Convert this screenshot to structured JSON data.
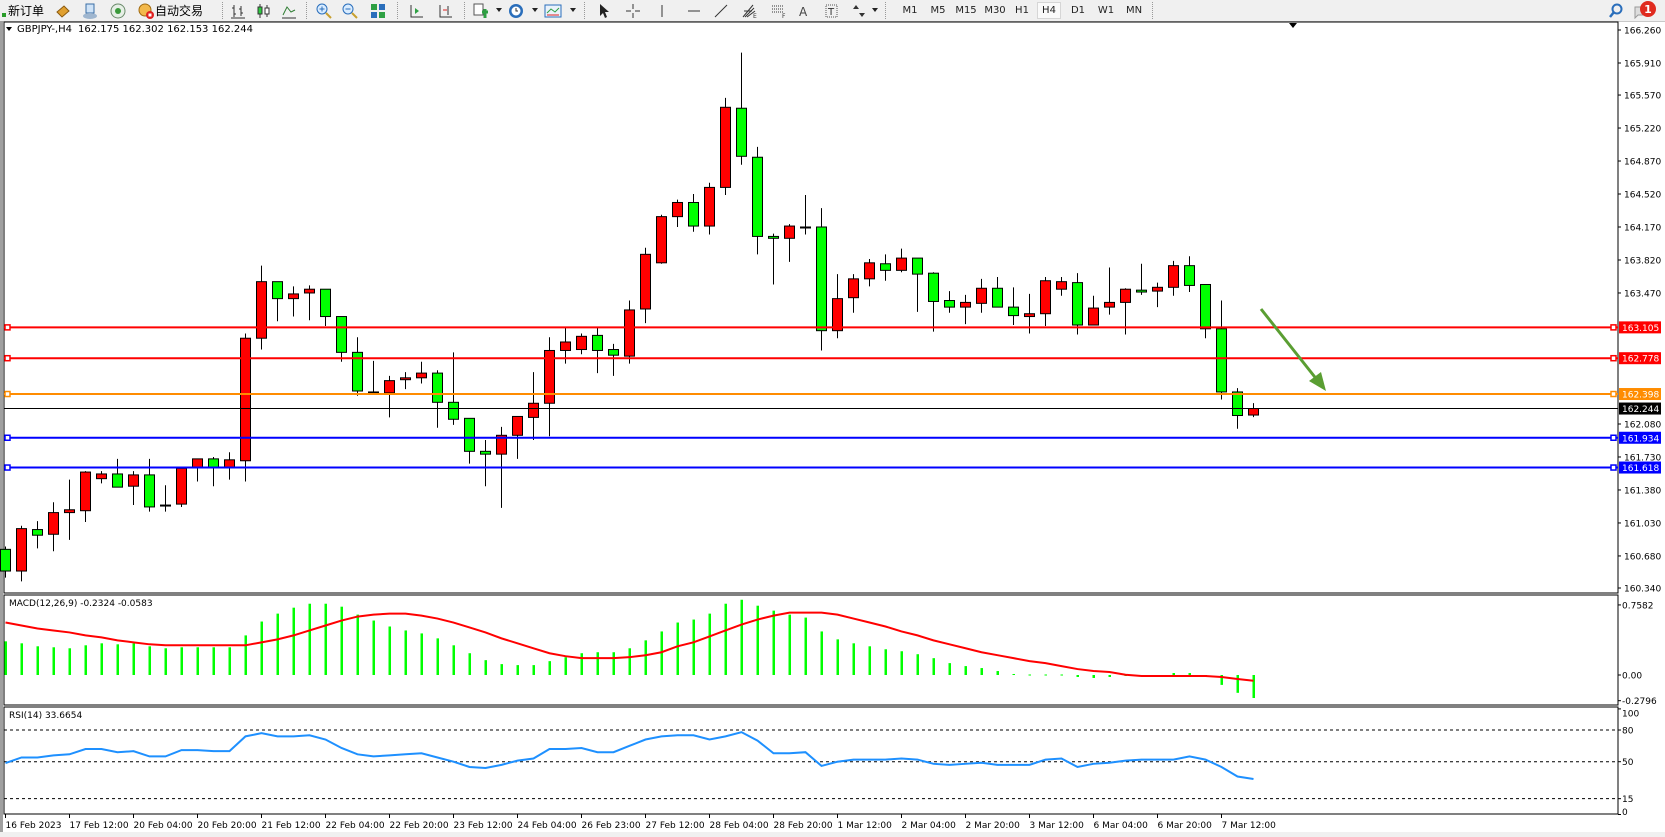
{
  "toolbar": {
    "new_order_label": "新订单",
    "auto_trading_label": "自动交易",
    "icons": [
      "new-order-icon",
      "market-watch-icon",
      "navigator-icon",
      "signals-icon",
      "auto-trading-icon",
      "bar-chart-icon",
      "candlestick-icon",
      "line-chart-icon",
      "zoom-in-icon",
      "zoom-out-icon",
      "tile-windows-icon",
      "chart-shift-icon",
      "autoscroll-icon",
      "indicators-icon",
      "periods-icon",
      "templates-icon",
      "cursor-icon",
      "crosshair-icon",
      "vertical-line-icon",
      "horizontal-line-icon",
      "trendline-icon",
      "fibonacci-fan-icon",
      "fibonacci-retracement-icon",
      "text-icon",
      "text-label-icon",
      "arrows-icon",
      "search-icon",
      "notifications-icon"
    ],
    "timeframes": [
      "M1",
      "M5",
      "M15",
      "M30",
      "H1",
      "H4",
      "D1",
      "W1",
      "MN"
    ],
    "active_timeframe": "H4",
    "notification_count": "1"
  },
  "chart_header": {
    "symbol": "GBPJPY-,H4",
    "ohlc": "162.175 162.302 162.153 162.244"
  },
  "chart_data": {
    "type": "candlestick",
    "symbol": "GBPJPY-",
    "timeframe": "H4",
    "colors": {
      "bull": "#ff0000",
      "bear": "#00ff00",
      "outline": "#000000"
    },
    "ylim": [
      160.34,
      166.26
    ],
    "price_ticks": [
      "166.260",
      "165.910",
      "165.570",
      "165.220",
      "164.870",
      "164.520",
      "164.170",
      "163.820",
      "163.470",
      "163.105",
      "162.778",
      "162.398",
      "162.244",
      "162.080",
      "161.934",
      "161.730",
      "161.618",
      "161.380",
      "161.030",
      "160.680",
      "160.340"
    ],
    "grid_tick_values": [
      166.26,
      165.91,
      165.57,
      165.22,
      164.87,
      164.52,
      164.17,
      163.82,
      163.47,
      162.08,
      161.73,
      161.38,
      161.03,
      160.68,
      160.34
    ],
    "levels": [
      {
        "price": 163.105,
        "label": "163.105",
        "color": "#ff0000"
      },
      {
        "price": 162.778,
        "label": "162.778",
        "color": "#ff0000"
      },
      {
        "price": 162.398,
        "label": "162.398",
        "color": "#ff8c00"
      },
      {
        "price": 161.934,
        "label": "161.934",
        "color": "#0000ff"
      },
      {
        "price": 161.618,
        "label": "161.618",
        "color": "#0000ff"
      }
    ],
    "bid": {
      "price": 162.244,
      "label": "162.244"
    },
    "time_labels": [
      "16 Feb 2023",
      "17 Feb 12:00",
      "20 Feb 04:00",
      "20 Feb 20:00",
      "21 Feb 12:00",
      "22 Feb 04:00",
      "22 Feb 20:00",
      "23 Feb 12:00",
      "24 Feb 04:00",
      "26 Feb 23:00",
      "27 Feb 12:00",
      "28 Feb 04:00",
      "28 Feb 20:00",
      "1 Mar 12:00",
      "2 Mar 04:00",
      "2 Mar 20:00",
      "3 Mar 12:00",
      "6 Mar 04:00",
      "6 Mar 20:00",
      "7 Mar 12:00"
    ],
    "time_label_every": 4,
    "ohlc": [
      [
        160.75,
        160.78,
        160.45,
        160.52
      ],
      [
        160.52,
        161.0,
        160.41,
        160.97
      ],
      [
        160.96,
        161.05,
        160.76,
        160.9
      ],
      [
        160.91,
        161.25,
        160.73,
        161.14
      ],
      [
        161.14,
        161.49,
        160.85,
        161.17
      ],
      [
        161.16,
        161.58,
        161.04,
        161.57
      ],
      [
        161.5,
        161.58,
        161.45,
        161.55
      ],
      [
        161.55,
        161.71,
        161.41,
        161.41
      ],
      [
        161.42,
        161.58,
        161.22,
        161.54
      ],
      [
        161.54,
        161.71,
        161.15,
        161.2
      ],
      [
        161.22,
        161.43,
        161.15,
        161.22
      ],
      [
        161.23,
        161.62,
        161.2,
        161.61
      ],
      [
        161.62,
        161.71,
        161.47,
        161.71
      ],
      [
        161.71,
        161.73,
        161.42,
        161.62
      ],
      [
        161.62,
        161.78,
        161.49,
        161.7
      ],
      [
        161.69,
        163.04,
        161.47,
        162.99
      ],
      [
        162.99,
        163.76,
        162.87,
        163.59
      ],
      [
        163.59,
        163.59,
        163.17,
        163.41
      ],
      [
        163.41,
        163.54,
        163.22,
        163.46
      ],
      [
        163.47,
        163.55,
        163.18,
        163.51
      ],
      [
        163.51,
        163.51,
        163.12,
        163.22
      ],
      [
        163.22,
        163.22,
        162.74,
        162.84
      ],
      [
        162.84,
        163.0,
        162.38,
        162.43
      ],
      [
        162.42,
        162.75,
        162.41,
        162.42
      ],
      [
        162.41,
        162.59,
        162.15,
        162.54
      ],
      [
        162.55,
        162.63,
        162.45,
        162.57
      ],
      [
        162.57,
        162.74,
        162.51,
        162.62
      ],
      [
        162.62,
        162.65,
        162.04,
        162.31
      ],
      [
        162.31,
        162.84,
        162.07,
        162.13
      ],
      [
        162.14,
        162.14,
        161.66,
        161.79
      ],
      [
        161.79,
        161.91,
        161.42,
        161.76
      ],
      [
        161.76,
        162.05,
        161.19,
        161.96
      ],
      [
        161.96,
        162.16,
        161.71,
        162.16
      ],
      [
        162.15,
        162.63,
        161.91,
        162.3
      ],
      [
        162.3,
        163.0,
        161.95,
        162.86
      ],
      [
        162.86,
        163.1,
        162.72,
        162.95
      ],
      [
        162.87,
        163.04,
        162.82,
        163.01
      ],
      [
        163.02,
        163.1,
        162.62,
        162.86
      ],
      [
        162.87,
        162.93,
        162.59,
        162.81
      ],
      [
        162.8,
        163.39,
        162.72,
        163.29
      ],
      [
        163.3,
        163.95,
        163.15,
        163.88
      ],
      [
        163.79,
        164.3,
        163.78,
        164.28
      ],
      [
        164.28,
        164.46,
        164.17,
        164.43
      ],
      [
        164.43,
        164.52,
        164.12,
        164.18
      ],
      [
        164.18,
        164.64,
        164.09,
        164.59
      ],
      [
        164.59,
        165.54,
        164.51,
        165.44
      ],
      [
        165.43,
        166.02,
        164.83,
        164.92
      ],
      [
        164.91,
        165.02,
        163.88,
        164.07
      ],
      [
        164.07,
        164.1,
        163.56,
        164.05
      ],
      [
        164.05,
        164.2,
        163.8,
        164.18
      ],
      [
        164.17,
        164.51,
        164.09,
        164.17
      ],
      [
        164.17,
        164.37,
        162.86,
        163.07
      ],
      [
        163.07,
        163.67,
        162.99,
        163.41
      ],
      [
        163.42,
        163.67,
        163.26,
        163.62
      ],
      [
        163.62,
        163.83,
        163.54,
        163.79
      ],
      [
        163.78,
        163.88,
        163.6,
        163.71
      ],
      [
        163.71,
        163.94,
        163.69,
        163.84
      ],
      [
        163.84,
        163.84,
        163.27,
        163.67
      ],
      [
        163.68,
        163.69,
        163.06,
        163.38
      ],
      [
        163.39,
        163.49,
        163.26,
        163.32
      ],
      [
        163.32,
        163.45,
        163.14,
        163.37
      ],
      [
        163.36,
        163.62,
        163.26,
        163.52
      ],
      [
        163.52,
        163.64,
        163.32,
        163.32
      ],
      [
        163.32,
        163.53,
        163.13,
        163.23
      ],
      [
        163.22,
        163.46,
        163.04,
        163.25
      ],
      [
        163.25,
        163.64,
        163.12,
        163.6
      ],
      [
        163.51,
        163.64,
        163.44,
        163.59
      ],
      [
        163.58,
        163.68,
        163.03,
        163.13
      ],
      [
        163.13,
        163.44,
        163.13,
        163.31
      ],
      [
        163.32,
        163.74,
        163.24,
        163.37
      ],
      [
        163.37,
        163.52,
        163.03,
        163.51
      ],
      [
        163.5,
        163.78,
        163.45,
        163.48
      ],
      [
        163.49,
        163.58,
        163.32,
        163.53
      ],
      [
        163.53,
        163.81,
        163.44,
        163.76
      ],
      [
        163.76,
        163.86,
        163.48,
        163.55
      ],
      [
        163.56,
        163.56,
        162.99,
        163.09
      ],
      [
        163.09,
        163.39,
        162.34,
        162.42
      ],
      [
        162.42,
        162.46,
        162.03,
        162.17
      ],
      [
        162.175,
        162.302,
        162.153,
        162.244
      ]
    ],
    "arrow": {
      "color": "#5a9e32",
      "direction": "down-right"
    },
    "macd": {
      "label": "MACD(12,26,9) -0.2324 -0.0583",
      "ticks": [
        "0.7582",
        "0.00",
        "-0.2796"
      ],
      "ylim": [
        -0.2796,
        0.7582
      ],
      "hist_color": "#00ff00",
      "signal_color": "#ff0000",
      "histogram": [
        0.34,
        0.32,
        0.29,
        0.28,
        0.27,
        0.3,
        0.32,
        0.31,
        0.32,
        0.29,
        0.27,
        0.28,
        0.28,
        0.28,
        0.28,
        0.4,
        0.54,
        0.62,
        0.68,
        0.72,
        0.72,
        0.69,
        0.61,
        0.55,
        0.49,
        0.45,
        0.42,
        0.37,
        0.3,
        0.22,
        0.15,
        0.11,
        0.1,
        0.1,
        0.14,
        0.18,
        0.22,
        0.23,
        0.23,
        0.27,
        0.35,
        0.44,
        0.53,
        0.56,
        0.62,
        0.72,
        0.76,
        0.7,
        0.65,
        0.61,
        0.58,
        0.44,
        0.36,
        0.32,
        0.29,
        0.26,
        0.24,
        0.21,
        0.17,
        0.12,
        0.09,
        0.07,
        0.04,
        0.01,
        0.005,
        0.005,
        0.005,
        -0.02,
        -0.03,
        -0.02,
        -0.01,
        -0.01,
        0.0,
        0.02,
        0.02,
        0.0,
        -0.1,
        -0.18,
        -0.2324
      ],
      "signal": [
        0.53,
        0.5,
        0.47,
        0.45,
        0.43,
        0.4,
        0.38,
        0.35,
        0.33,
        0.31,
        0.3,
        0.3,
        0.3,
        0.3,
        0.3,
        0.3,
        0.33,
        0.36,
        0.4,
        0.45,
        0.5,
        0.55,
        0.59,
        0.61,
        0.62,
        0.62,
        0.6,
        0.57,
        0.53,
        0.48,
        0.43,
        0.37,
        0.32,
        0.27,
        0.22,
        0.19,
        0.17,
        0.17,
        0.17,
        0.18,
        0.2,
        0.23,
        0.29,
        0.33,
        0.39,
        0.45,
        0.51,
        0.56,
        0.6,
        0.63,
        0.63,
        0.63,
        0.61,
        0.57,
        0.53,
        0.49,
        0.44,
        0.4,
        0.35,
        0.31,
        0.27,
        0.23,
        0.2,
        0.17,
        0.14,
        0.12,
        0.09,
        0.06,
        0.04,
        0.03,
        0.003,
        -0.01,
        -0.01,
        -0.01,
        -0.01,
        -0.01,
        -0.02,
        -0.04,
        -0.0583
      ]
    },
    "rsi": {
      "label": "RSI(14) 33.6654",
      "ticks": [
        "100",
        "80",
        "50",
        "15",
        "0"
      ],
      "levels": [
        80,
        50,
        15
      ],
      "ylim": [
        0,
        100
      ],
      "color": "#1e90ff",
      "values": [
        48.7,
        54,
        54,
        56,
        57,
        62,
        62,
        59,
        60,
        55,
        55,
        61,
        61,
        60,
        60,
        74,
        77,
        74,
        74,
        75,
        71,
        63,
        57,
        55,
        56,
        57,
        58,
        54,
        50,
        45,
        44,
        47,
        51,
        53,
        62,
        62,
        63,
        59,
        59,
        65,
        71,
        74,
        75,
        75,
        71,
        74,
        78,
        70,
        58,
        58,
        59,
        46,
        50,
        52,
        52,
        52,
        53,
        52,
        48,
        47,
        48,
        49,
        47,
        47,
        47,
        52,
        53,
        45,
        48,
        49,
        51,
        52,
        52,
        52,
        55,
        52,
        45,
        36,
        33.6654
      ]
    }
  }
}
